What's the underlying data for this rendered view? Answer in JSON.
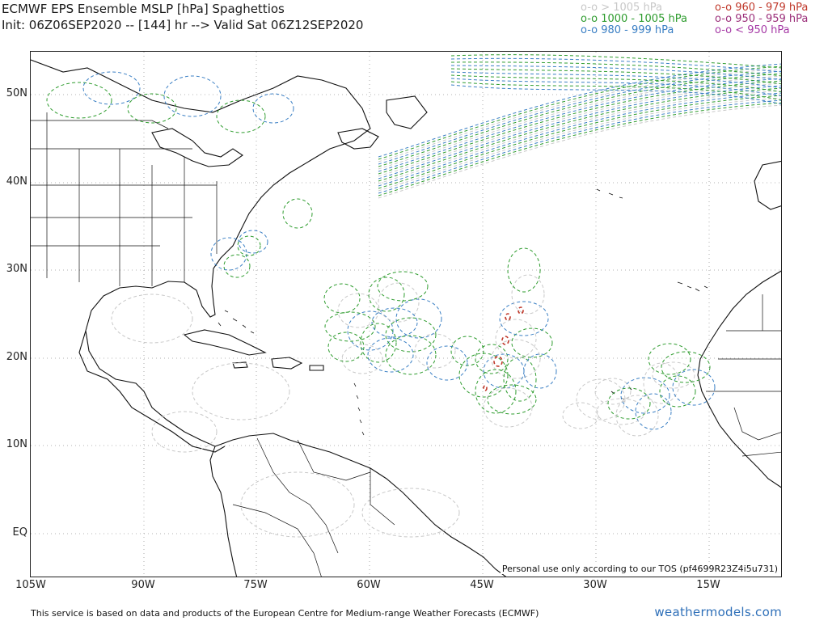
{
  "header": {
    "title_line1": "ECMWF EPS Ensemble MSLP [hPa] Spaghettios",
    "title_line2": "Init: 06Z06SEP2020 -- [144] hr --> Valid Sat 06Z12SEP2020"
  },
  "legend": {
    "items": [
      {
        "label": "o-o > 1005 hPa",
        "color": "#c8c8c8"
      },
      {
        "label": "o-o 1000 - 1005 hPa",
        "color": "#2e9c2e"
      },
      {
        "label": "o-o 980 - 999 hPa",
        "color": "#3a7fc4"
      },
      {
        "label": "o-o 960 - 979 hPa",
        "color": "#c0392b"
      },
      {
        "label": "o-o 950 - 959 hPa",
        "color": "#9b2f7a"
      },
      {
        "label": "o-o < 950 hPa",
        "color": "#a63aa6"
      }
    ]
  },
  "axes": {
    "latitude_labels": [
      "50N",
      "40N",
      "30N",
      "20N",
      "10N",
      "EQ"
    ],
    "longitude_labels": [
      "105W",
      "90W",
      "75W",
      "60W",
      "45W",
      "30W",
      "15W"
    ]
  },
  "notes": {
    "tos": "Personal use only according to our TOS (pf4699R23Z4i5u731)",
    "footer": "This service is based on data and products of the European Centre for Medium-range Weather Forecasts (ECMWF)",
    "brand": "weathermodels.com"
  },
  "colors": {
    "gray_contour": "#c8c8c8",
    "green_contour": "#2e9c2e",
    "blue_contour": "#3a7fc4",
    "red_contour": "#c0392b",
    "coastline": "#111111",
    "gridline": "#9a9a9a"
  }
}
